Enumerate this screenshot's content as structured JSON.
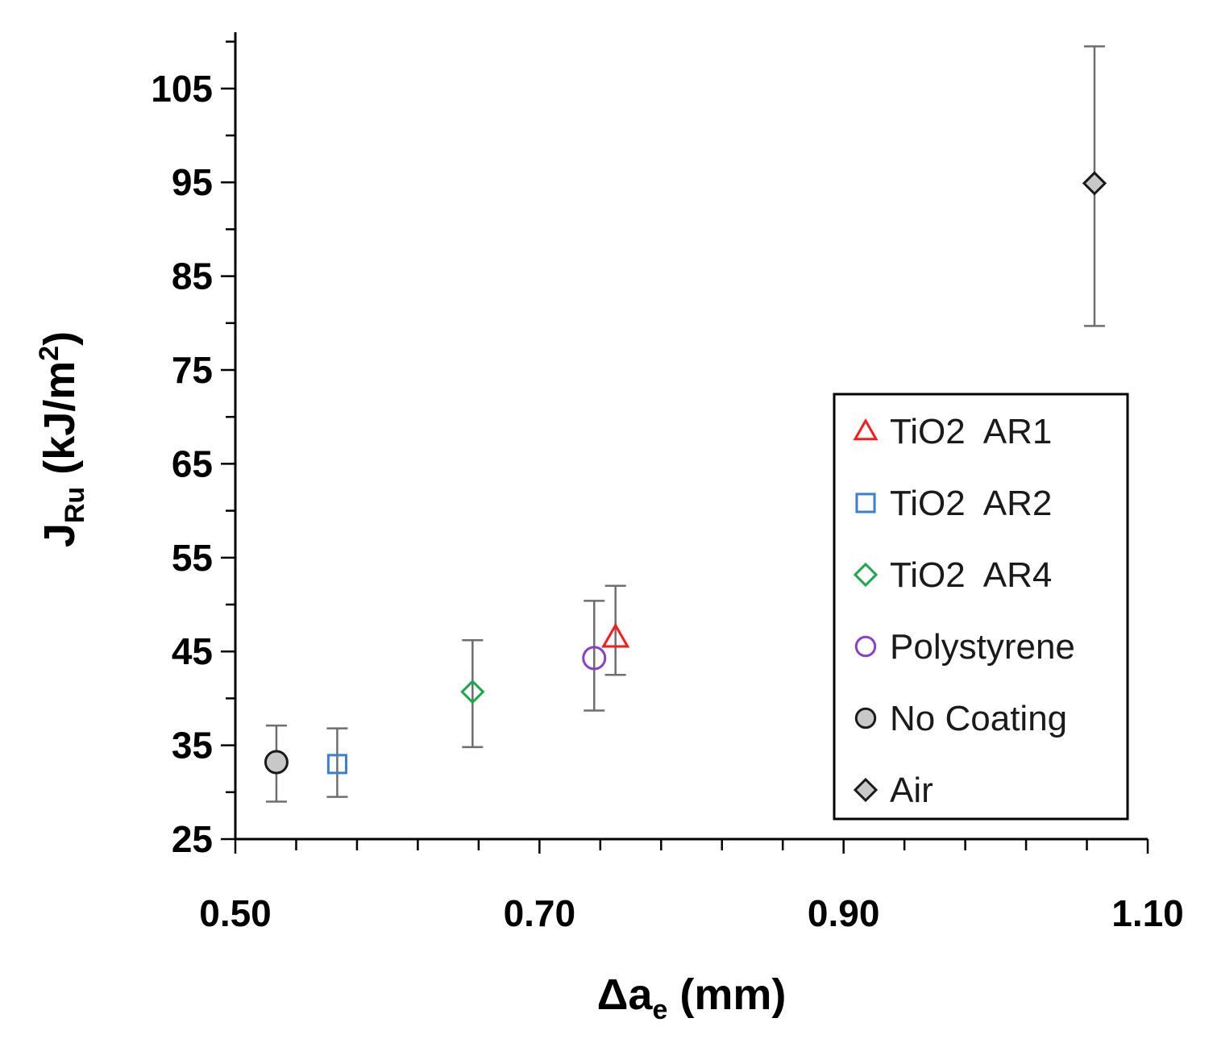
{
  "chart_data": {
    "type": "scatter",
    "title": "",
    "xlabel": {
      "main": "Δa",
      "sub": "e",
      "unit": " (mm)"
    },
    "ylabel": {
      "main": "J",
      "sub": "Ru",
      "unit_pre": " (kJ/m",
      "sup": "2",
      "unit_post": ")"
    },
    "xlim": [
      0.5,
      1.1
    ],
    "ylim": [
      25,
      111
    ],
    "x_ticks": [
      0.5,
      0.7,
      0.9,
      1.1
    ],
    "x_tick_labels": [
      "0.50",
      "0.70",
      "0.90",
      "1.10"
    ],
    "x_minor_step": 0.04,
    "y_ticks": [
      25,
      35,
      45,
      55,
      65,
      75,
      85,
      95,
      105
    ],
    "y_tick_labels": [
      "25",
      "35",
      "45",
      "55",
      "65",
      "75",
      "85",
      "95",
      "105"
    ],
    "y_minor_step": 5,
    "grid": false,
    "legend_position": "right",
    "series": [
      {
        "name": "TiO2  AR1",
        "marker": "triangle",
        "color": "#ff1a1a",
        "fill": "none",
        "x": 0.75,
        "y": 46.5,
        "err_low": 42.5,
        "err_high": 52.0
      },
      {
        "name": "TiO2  AR2",
        "marker": "square",
        "color": "#3a7fd5",
        "fill": "none",
        "x": 0.567,
        "y": 33.0,
        "err_low": 29.5,
        "err_high": 36.8
      },
      {
        "name": "TiO2  AR4",
        "marker": "diamond",
        "color": "#1aa84a",
        "fill": "none",
        "x": 0.656,
        "y": 40.7,
        "err_low": 34.8,
        "err_high": 46.2
      },
      {
        "name": "Polystyrene",
        "marker": "circle",
        "color": "#8b3fc7",
        "fill": "none",
        "x": 0.736,
        "y": 44.3,
        "err_low": 38.7,
        "err_high": 50.4
      },
      {
        "name": "No Coating",
        "marker": "circle",
        "color": "#1a1a1a",
        "fill": "#c8c8c8",
        "x": 0.527,
        "y": 33.2,
        "err_low": 29.0,
        "err_high": 37.1
      },
      {
        "name": "Air",
        "marker": "diamond",
        "color": "#1a1a1a",
        "fill": "#c8c8c8",
        "x": 1.065,
        "y": 94.9,
        "err_low": 79.7,
        "err_high": 109.5
      }
    ]
  }
}
